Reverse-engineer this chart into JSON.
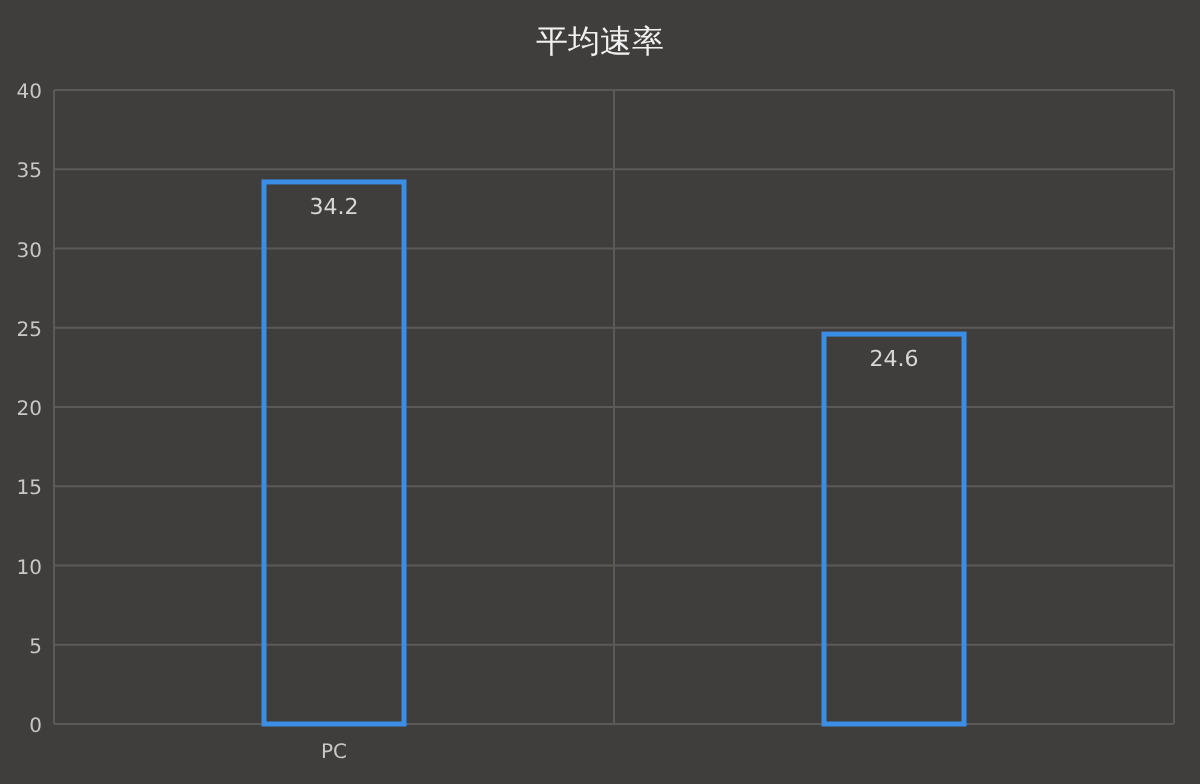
{
  "chart_data": {
    "type": "bar",
    "title": "平均速率",
    "categories": [
      "PC",
      null
    ],
    "values": [
      34.2,
      24.6
    ],
    "color": "#3a8ee6",
    "ylim": [
      0,
      40
    ],
    "yticks": [
      0,
      5,
      10,
      15,
      20,
      25,
      30,
      35,
      40
    ],
    "grid": true,
    "data_labels": true
  }
}
